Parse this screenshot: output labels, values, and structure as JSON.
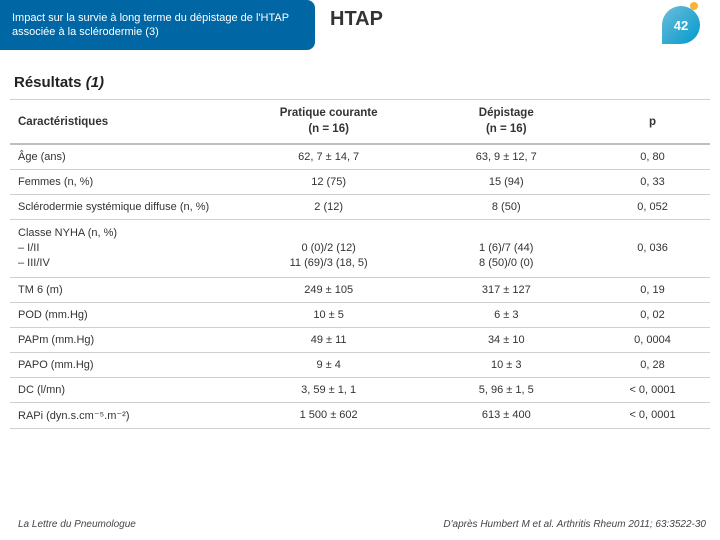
{
  "header": {
    "subtitle": "Impact sur la survie à long terme du dépistage de l'HTAP associée à la sclérodermie (3)",
    "title": "HTAP",
    "slide_number": "42"
  },
  "section_title_prefix": "Résultats ",
  "section_title_suffix": "(1)",
  "table": {
    "columns": [
      "Caractéristiques",
      "Pratique courante\n(n = 16)",
      "Dépistage\n(n = 16)",
      "p"
    ],
    "rows": [
      [
        "Âge (ans)",
        "62, 7 ± 14, 7",
        "63, 9 ± 12, 7",
        "0, 80"
      ],
      [
        "Femmes (n, %)",
        "12 (75)",
        "15 (94)",
        "0, 33"
      ],
      [
        "Sclérodermie systémique diffuse (n, %)",
        "2 (12)",
        "8 (50)",
        "0, 052"
      ],
      [
        "Classe NYHA (n, %)\n– I/II\n– III/IV",
        "\n0 (0)/2 (12)\n11 (69)/3 (18, 5)",
        "\n1 (6)/7 (44)\n8 (50)/0 (0)",
        "0, 036"
      ],
      [
        "TM 6 (m)",
        "249 ± 105",
        "317 ± 127",
        "0, 19"
      ],
      [
        "POD (mm.Hg)",
        "10 ± 5",
        "6 ± 3",
        "0, 02"
      ],
      [
        "PAPm (mm.Hg)",
        "49 ± 11",
        "34 ± 10",
        "0, 0004"
      ],
      [
        "PAPO (mm.Hg)",
        "9 ± 4",
        "10 ± 3",
        "0, 28"
      ],
      [
        "DC (l/mn)",
        "3, 59 ± 1, 1",
        "5, 96 ± 1, 5",
        "< 0, 0001"
      ],
      [
        "RAPi (dyn.s.cm⁻⁵.m⁻²)",
        "1 500 ± 602",
        "613 ± 400",
        "< 0, 0001"
      ]
    ]
  },
  "footer": {
    "left": "La Lettre du Pneumologue",
    "right": "D'après Humbert M et al. Arthritis Rheum 2011; 63:3522-30"
  },
  "colors": {
    "header_bg": "#0066a4",
    "badge_grad_a": "#6dbedb",
    "badge_grad_b": "#0099cc",
    "border": "#cfcfcf"
  }
}
